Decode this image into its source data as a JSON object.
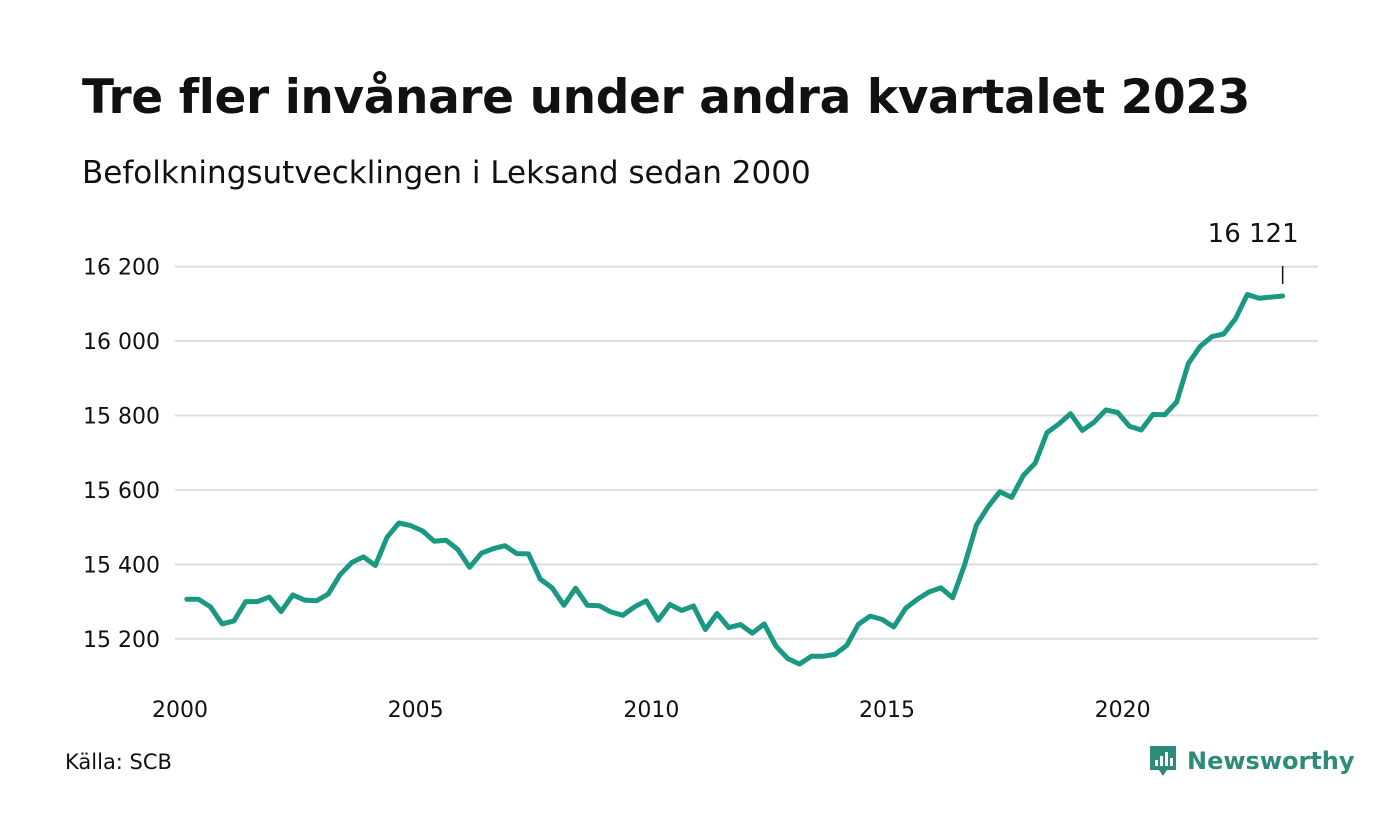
{
  "header": {
    "title": "Tre fler invånare under andra kvartalet 2023",
    "subtitle": "Befolkningsutvecklingen i Leksand sedan 2000"
  },
  "footer": {
    "source": "Källa: SCB",
    "brand": "Newsworthy",
    "brand_icon": "newsworthy-logo-icon"
  },
  "colors": {
    "line": "#1b9882",
    "grid": "#dddddd",
    "text": "#111111",
    "brand": "#2e8b7a"
  },
  "chart_data": {
    "type": "line",
    "title": "Tre fler invånare under andra kvartalet 2023",
    "subtitle": "Befolkningsutvecklingen i Leksand sedan 2000",
    "xlabel": "",
    "ylabel": "",
    "xlim": [
      2000,
      2024.25
    ],
    "ylim": [
      15100,
      16250
    ],
    "grid": true,
    "x_ticks": [
      {
        "value": 2000,
        "label": "2000"
      },
      {
        "value": 2005,
        "label": "2005"
      },
      {
        "value": 2010,
        "label": "2010"
      },
      {
        "value": 2015,
        "label": "2015"
      },
      {
        "value": 2020,
        "label": "2020"
      }
    ],
    "y_ticks": [
      {
        "value": 15200,
        "label": "15 200"
      },
      {
        "value": 15400,
        "label": "15 400"
      },
      {
        "value": 15600,
        "label": "15 600"
      },
      {
        "value": 15800,
        "label": "15 800"
      },
      {
        "value": 16000,
        "label": "16 000"
      },
      {
        "value": 16200,
        "label": "16 200"
      }
    ],
    "annotation": {
      "x": 2023.5,
      "y": 16121,
      "label": "16 121"
    },
    "series": [
      {
        "x": [
          2000.25,
          2000.5,
          2000.75,
          2001.0,
          2001.25,
          2001.5,
          2001.75,
          2002.0,
          2002.25,
          2002.5,
          2002.75,
          2003.0,
          2003.25,
          2003.5,
          2003.75,
          2004.0,
          2004.25,
          2004.5,
          2004.75,
          2005.0,
          2005.25,
          2005.5,
          2005.75,
          2006.0,
          2006.25,
          2006.5,
          2006.75,
          2007.0,
          2007.25,
          2007.5,
          2007.75,
          2008.0,
          2008.25,
          2008.5,
          2008.75,
          2009.0,
          2009.25,
          2009.5,
          2009.75,
          2010.0,
          2010.25,
          2010.5,
          2010.75,
          2011.0,
          2011.25,
          2011.5,
          2011.75,
          2012.0,
          2012.25,
          2012.5,
          2012.75,
          2013.0,
          2013.25,
          2013.5,
          2013.75,
          2014.0,
          2014.25,
          2014.5,
          2014.75,
          2015.0,
          2015.25,
          2015.5,
          2015.75,
          2016.0,
          2016.25,
          2016.5,
          2016.75,
          2017.0,
          2017.25,
          2017.5,
          2017.75,
          2018.0,
          2018.25,
          2018.5,
          2018.75,
          2019.0,
          2019.25,
          2019.5,
          2019.75,
          2020.0,
          2020.25,
          2020.5,
          2020.75,
          2021.0,
          2021.25,
          2021.5,
          2021.75,
          2022.0,
          2022.25,
          2022.5,
          2022.75,
          2023.0,
          2023.25,
          2023.5
        ],
        "values": [
          15306,
          15306,
          15286,
          15240,
          15248,
          15300,
          15300,
          15312,
          15273,
          15318,
          15304,
          15302,
          15320,
          15372,
          15405,
          15420,
          15397,
          15473,
          15511,
          15504,
          15490,
          15462,
          15465,
          15440,
          15392,
          15430,
          15442,
          15450,
          15429,
          15428,
          15360,
          15337,
          15290,
          15336,
          15290,
          15289,
          15272,
          15263,
          15286,
          15302,
          15250,
          15292,
          15276,
          15288,
          15225,
          15268,
          15230,
          15238,
          15215,
          15240,
          15180,
          15147,
          15132,
          15153,
          15153,
          15158,
          15182,
          15239,
          15261,
          15252,
          15232,
          15282,
          15306,
          15326,
          15337,
          15310,
          15398,
          15505,
          15555,
          15595,
          15580,
          15639,
          15672,
          15754,
          15777,
          15805,
          15760,
          15782,
          15815,
          15808,
          15771,
          15761,
          15803,
          15802,
          15836,
          15940,
          15986,
          16012,
          16019,
          16060,
          16125,
          16115,
          16118,
          16121
        ]
      }
    ]
  }
}
